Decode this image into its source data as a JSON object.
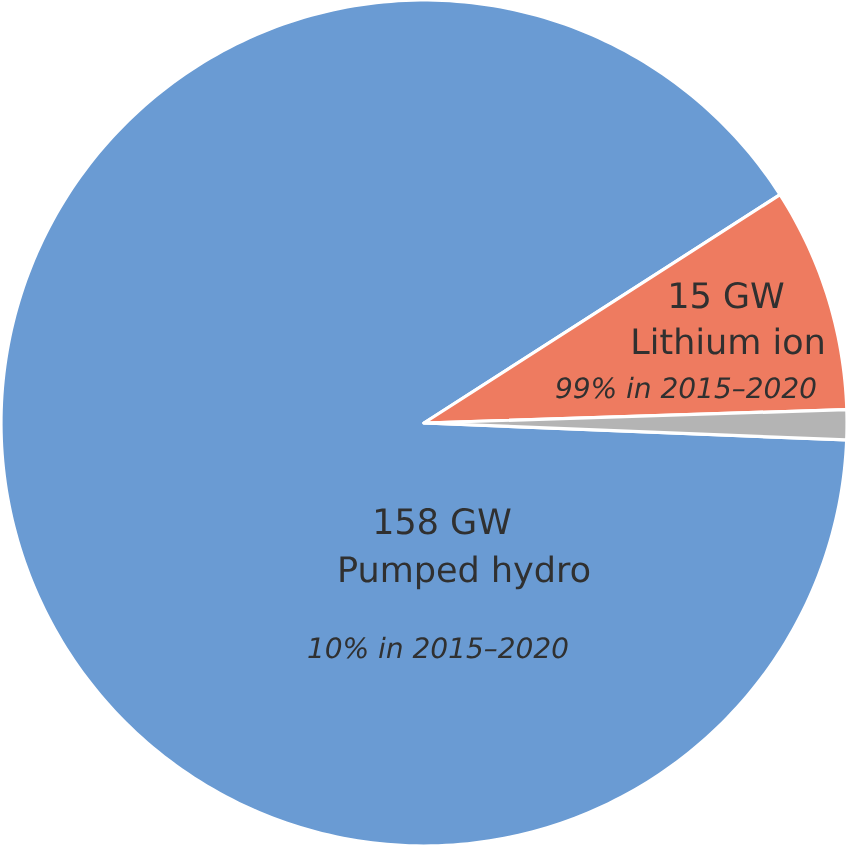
{
  "chart_data": {
    "type": "pie",
    "categories": [
      "Pumped hydro",
      "Lithium ion",
      null
    ],
    "values": [
      158,
      15,
      2
    ],
    "colors": [
      "#6a9bd3",
      "#ee7b60",
      "#b4b4b4"
    ],
    "value_labels": [
      "158 GW",
      "15 GW",
      null
    ],
    "annotations": [
      "10% in 2015–2020",
      "99% in 2015–2020"
    ]
  }
}
